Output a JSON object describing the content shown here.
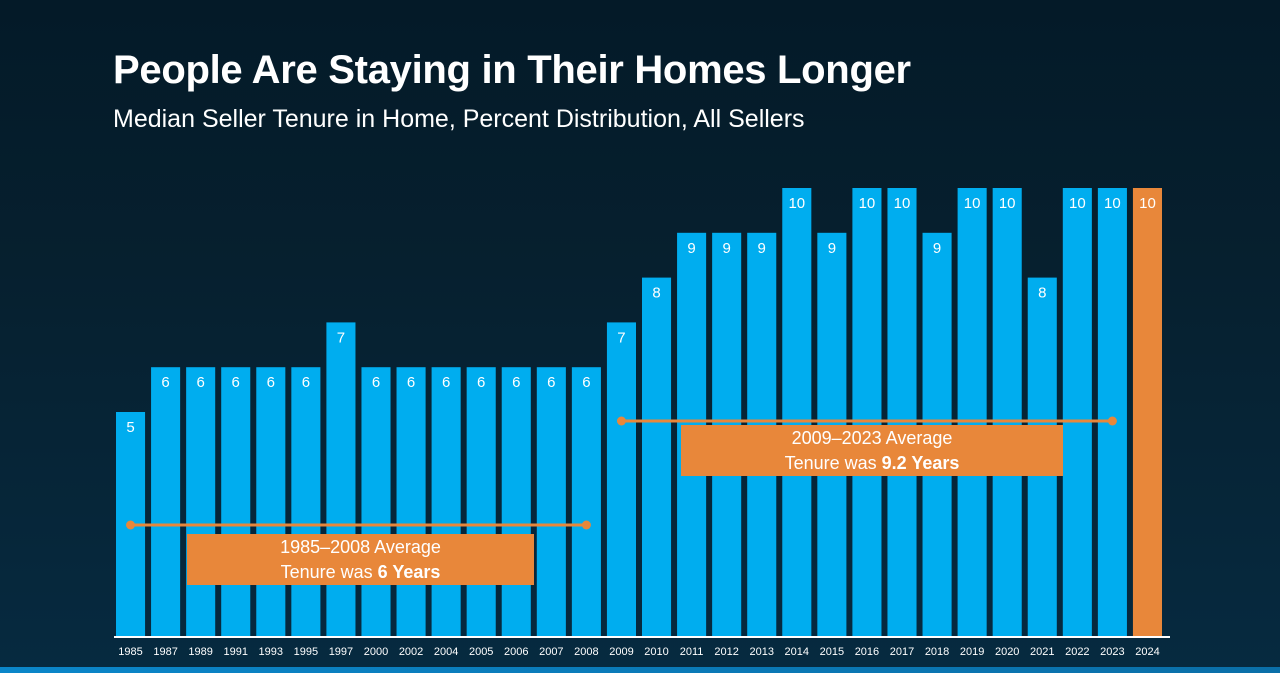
{
  "chart_data": {
    "type": "bar",
    "title": "People Are Staying in Their Homes Longer",
    "subtitle": "Median Seller Tenure in Home, Percent Distribution, All Sellers",
    "xlabel": "",
    "ylabel": "",
    "ylim": [
      0,
      10
    ],
    "grid": false,
    "categories": [
      "1985",
      "1987",
      "1989",
      "1991",
      "1993",
      "1995",
      "1997",
      "2000",
      "2002",
      "2004",
      "2005",
      "2006",
      "2007",
      "2008",
      "2009",
      "2010",
      "2011",
      "2012",
      "2013",
      "2014",
      "2015",
      "2016",
      "2017",
      "2018",
      "2019",
      "2020",
      "2021",
      "2022",
      "2023",
      "2024"
    ],
    "values": [
      5,
      6,
      6,
      6,
      6,
      6,
      7,
      6,
      6,
      6,
      6,
      6,
      6,
      6,
      7,
      8,
      9,
      9,
      9,
      10,
      9,
      10,
      10,
      9,
      10,
      10,
      8,
      10,
      10,
      10
    ],
    "colors": {
      "bar": "#00adef",
      "highlight": "#e8873a",
      "highlight_category": "2024",
      "axis": "#ffffff",
      "label": "#ffffff"
    },
    "annotations": [
      {
        "id": "avg-1985-2008",
        "range": [
          "1985",
          "2008"
        ],
        "value": 6,
        "line1": "1985–2008 Average",
        "line2_prefix": "Tenure was ",
        "line2_bold": "6 Years"
      },
      {
        "id": "avg-2009-2023",
        "range": [
          "2009",
          "2023"
        ],
        "value": 9.2,
        "line1": "2009–2023 Average",
        "line2_prefix": "Tenure was ",
        "line2_bold": "9.2 Years"
      }
    ]
  }
}
